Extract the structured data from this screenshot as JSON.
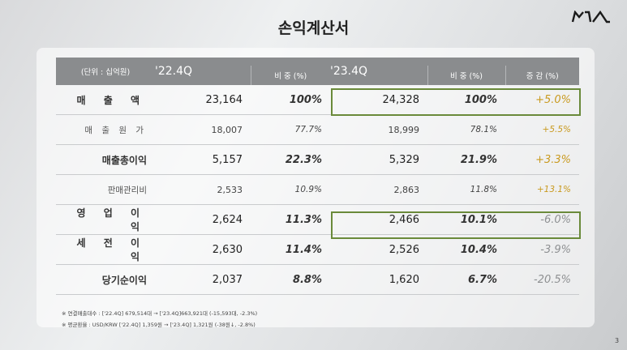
{
  "title": "손익계산서",
  "brand": "KIA",
  "table": {
    "unit": "(단위 : 십억원)",
    "periods": [
      "'22.4Q",
      "'23.4Q"
    ],
    "ratio_label": "비 중 (%)",
    "change_label": "증 감 (%)",
    "rows": [
      {
        "label": "매 출 액",
        "v1": "23,164",
        "r1": "100%",
        "v2": "24,328",
        "r2": "100%",
        "chg": "+5.0%"
      },
      {
        "label": "매 출 원 가",
        "v1": "18,007",
        "r1": "77.7%",
        "v2": "18,999",
        "r2": "78.1%",
        "chg": "+5.5%"
      },
      {
        "label": "매출총이익",
        "v1": "5,157",
        "r1": "22.3%",
        "v2": "5,329",
        "r2": "21.9%",
        "chg": "+3.3%"
      },
      {
        "label": "판매관리비",
        "v1": "2,533",
        "r1": "10.9%",
        "v2": "2,863",
        "r2": "11.8%",
        "chg": "+13.1%"
      },
      {
        "label": "영 업 이 익",
        "v1": "2,624",
        "r1": "11.3%",
        "v2": "2,466",
        "r2": "10.1%",
        "chg": "-6.0%"
      },
      {
        "label": "세 전 이 익",
        "v1": "2,630",
        "r1": "11.4%",
        "v2": "2,526",
        "r2": "10.4%",
        "chg": "-3.9%"
      },
      {
        "label": "당기순이익",
        "v1": "2,037",
        "r1": "8.8%",
        "v2": "1,620",
        "r2": "6.7%",
        "chg": "-20.5%"
      }
    ]
  },
  "notes": [
    "※ 연결매출대수 : ['22.4Q] 679,514대 → ['23.4Q]663,921대 (-15,593대, -2.3%)",
    "※ 평균환율 : USD/KRW ['22.4Q] 1,359원 → ['23.4Q] 1,321원 (-38원↓, -2.8%)"
  ],
  "page_number": "3",
  "colors": {
    "accent_increase": "#c99a1f",
    "highlight_border": "#6a8a3a",
    "header_bg": "#8a8c8e"
  }
}
